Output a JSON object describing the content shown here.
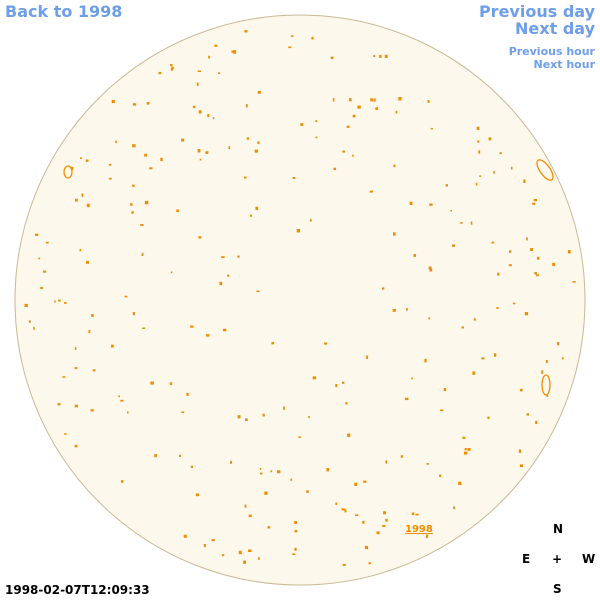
{
  "nav": {
    "back_year": "Back to 1998",
    "previous_day": "Previous day",
    "next_day": "Next day",
    "previous_hour": "Previous hour",
    "next_hour": "Next hour"
  },
  "disk": {
    "year_label": "1998"
  },
  "compass": {
    "north": "N",
    "east": "E",
    "center": "+",
    "west": "W",
    "south": "S"
  },
  "timestamp": "1998-02-07T12:09:33"
}
